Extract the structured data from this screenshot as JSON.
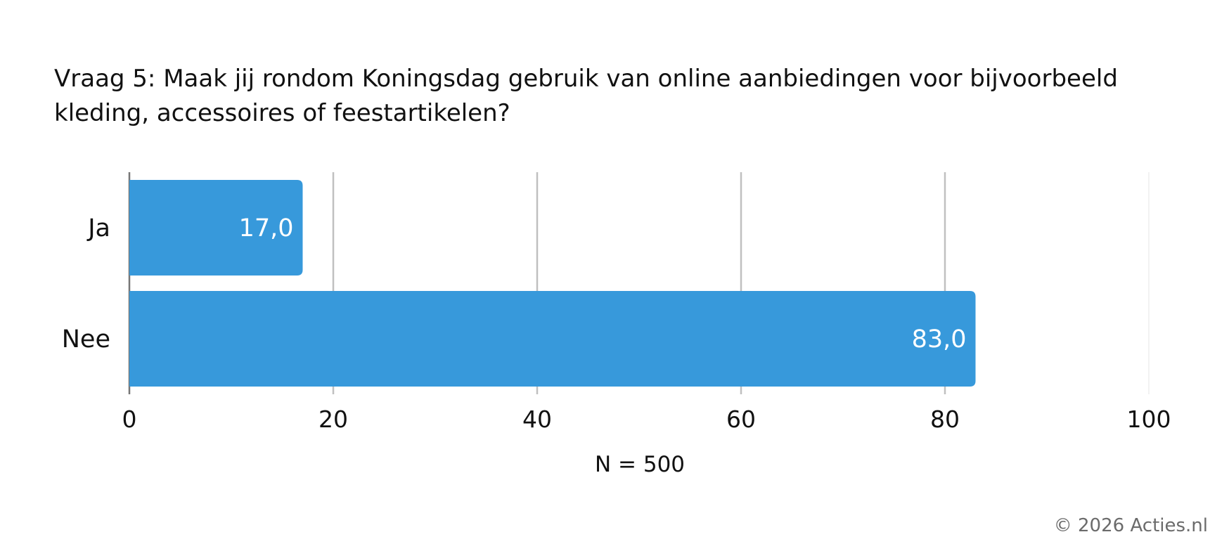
{
  "chart_data": {
    "type": "bar",
    "orientation": "horizontal",
    "title": "Vraag 5: Maak jij rondom Koningsdag gebruik van online aanbiedingen voor bijvoorbeeld kleding, accessoires of feestartikelen?",
    "categories": [
      "Ja",
      "Nee"
    ],
    "values": [
      17.0,
      83.0
    ],
    "value_labels": [
      "17,0",
      "83,0"
    ],
    "xlabel": "N = 500",
    "ylabel": "",
    "xlim": [
      0,
      100
    ],
    "xticks": [
      0,
      20,
      40,
      60,
      80,
      100
    ],
    "grid": true,
    "legend": "none",
    "bar_color": "#3799db",
    "gridline_color": "#c0c0c0"
  },
  "footer": {
    "credit": "© 2026 Acties.nl"
  }
}
